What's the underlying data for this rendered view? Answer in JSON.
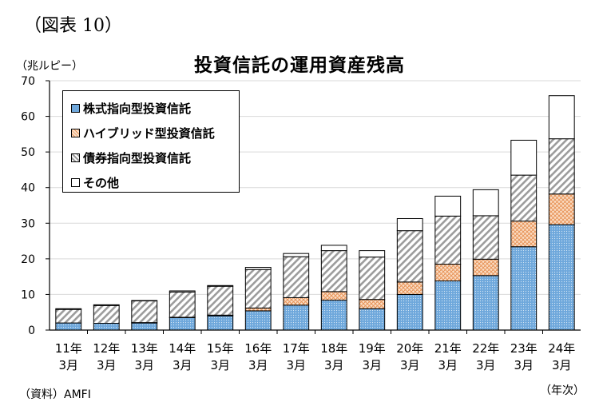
{
  "figure_label": "（図表 10）",
  "chart_data": {
    "type": "bar",
    "stacked": true,
    "title": "投資信託の運用資産残高",
    "ylabel": "（兆ルピー）",
    "xlabel": "（年次）",
    "source": "（資料）AMFI",
    "ylim": [
      0,
      70
    ],
    "yticks": [
      0,
      10,
      20,
      30,
      40,
      50,
      60,
      70
    ],
    "grid": true,
    "legend_position": "top-left",
    "categories": [
      [
        "11年",
        "3月"
      ],
      [
        "12年",
        "3月"
      ],
      [
        "13年",
        "3月"
      ],
      [
        "14年",
        "3月"
      ],
      [
        "15年",
        "3月"
      ],
      [
        "16年",
        "3月"
      ],
      [
        "17年",
        "3月"
      ],
      [
        "18年",
        "3月"
      ],
      [
        "19年",
        "3月"
      ],
      [
        "20年",
        "3月"
      ],
      [
        "21年",
        "3月"
      ],
      [
        "22年",
        "3月"
      ],
      [
        "23年",
        "3月"
      ],
      [
        "24年",
        "3月"
      ]
    ],
    "series": [
      {
        "name": "株式指向型投資信託",
        "pattern": "dots-blue",
        "color": "#5b9bd5",
        "values": [
          2.0,
          1.9,
          2.0,
          3.5,
          4.0,
          5.4,
          7.0,
          8.4,
          6.0,
          10.0,
          13.8,
          15.3,
          23.4,
          29.6
        ]
      },
      {
        "name": "ハイブリッド型投資信託",
        "pattern": "cross-orange",
        "color": "#f4b183",
        "values": [
          0.0,
          0.0,
          0.1,
          0.1,
          0.2,
          0.8,
          2.1,
          2.4,
          2.6,
          3.5,
          4.7,
          4.6,
          7.2,
          8.6
        ]
      },
      {
        "name": "債券指向型投資信託",
        "pattern": "diagonal-gray",
        "color": "#a6a6a6",
        "values": [
          3.8,
          5.0,
          6.1,
          7.1,
          8.1,
          10.8,
          11.5,
          11.5,
          11.9,
          14.4,
          13.5,
          12.2,
          12.9,
          15.5
        ]
      },
      {
        "name": "その他",
        "pattern": "white",
        "color": "#ffffff",
        "values": [
          0.2,
          0.2,
          0.1,
          0.3,
          0.2,
          0.6,
          0.9,
          1.5,
          1.8,
          3.4,
          5.6,
          7.3,
          9.8,
          12.1
        ]
      }
    ]
  }
}
